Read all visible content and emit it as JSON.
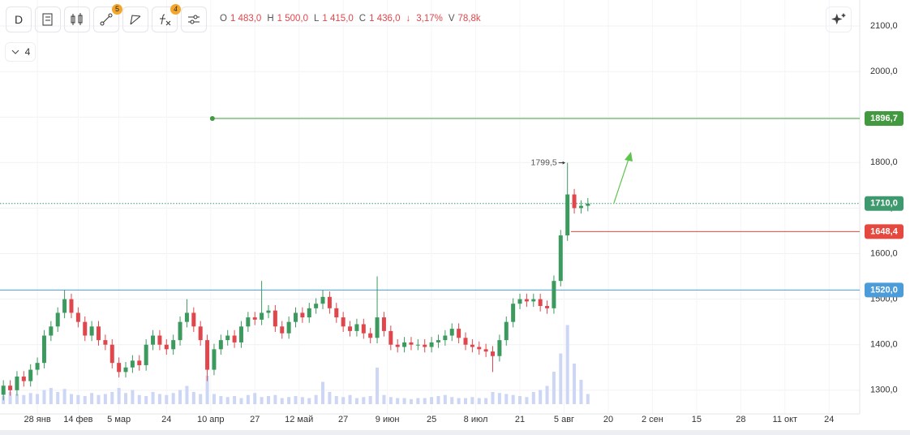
{
  "toolbar": {
    "interval": "D",
    "drawings_badge": "5",
    "indicators_badge": "4",
    "indicator_count": "4",
    "legend": [
      {
        "key": "O",
        "value": "1 483,0"
      },
      {
        "key": "H",
        "value": "1 500,0"
      },
      {
        "key": "L",
        "value": "1 415,0"
      },
      {
        "key": "C",
        "value": "1 436,0"
      }
    ],
    "change_arrow": "↓",
    "change": "3,17%",
    "volume_key": "V",
    "volume": "78,8k"
  },
  "chart_data": {
    "type": "candlestick",
    "up_color": "#3d9a5f",
    "down_color": "#e0474c",
    "xlim": [
      0,
      253
    ],
    "ylim": [
      1248,
      2157
    ],
    "xticks": [
      {
        "value": 11,
        "label": "28 янв"
      },
      {
        "value": 23,
        "label": "14 фев"
      },
      {
        "value": 35,
        "label": "5 мар"
      },
      {
        "value": 49,
        "label": "24"
      },
      {
        "value": 62,
        "label": "10 апр"
      },
      {
        "value": 75,
        "label": "27"
      },
      {
        "value": 88,
        "label": "12 май"
      },
      {
        "value": 101,
        "label": "27"
      },
      {
        "value": 114,
        "label": "9 июн"
      },
      {
        "value": 127,
        "label": "25"
      },
      {
        "value": 140,
        "label": "8 июл"
      },
      {
        "value": 153,
        "label": "21"
      },
      {
        "value": 166,
        "label": "5 авг"
      },
      {
        "value": 179,
        "label": "20"
      },
      {
        "value": 192,
        "label": "2 сен"
      },
      {
        "value": 205,
        "label": "15"
      },
      {
        "value": 218,
        "label": "28"
      },
      {
        "value": 231,
        "label": "11 окт"
      },
      {
        "value": 244,
        "label": "24"
      }
    ],
    "yticks": [
      {
        "value": 1300,
        "label": "1300,0"
      },
      {
        "value": 1400,
        "label": "1400,0"
      },
      {
        "value": 1500,
        "label": "1500,0"
      },
      {
        "value": 1600,
        "label": "1600,0"
      },
      {
        "value": 1700,
        "label": "1700,0"
      },
      {
        "value": 1800,
        "label": "1800,0"
      },
      {
        "value": 1900,
        "label": "1900,0"
      },
      {
        "value": 2000,
        "label": "2000,0"
      },
      {
        "value": 2100,
        "label": "2100,0"
      }
    ],
    "grid": true,
    "x": [
      1,
      3,
      5,
      7,
      9,
      11,
      13,
      15,
      17,
      19,
      21,
      23,
      25,
      27,
      29,
      31,
      33,
      35,
      37,
      39,
      41,
      43,
      45,
      47,
      49,
      51,
      53,
      55,
      57,
      59,
      61,
      63,
      65,
      67,
      69,
      71,
      73,
      75,
      77,
      79,
      81,
      83,
      85,
      87,
      89,
      91,
      93,
      95,
      97,
      99,
      101,
      103,
      105,
      107,
      109,
      111,
      113,
      115,
      117,
      119,
      121,
      123,
      125,
      127,
      129,
      131,
      133,
      135,
      137,
      139,
      141,
      143,
      145,
      147,
      149,
      151,
      153,
      155,
      157,
      159,
      161,
      163,
      165,
      167,
      169,
      171,
      173
    ],
    "open": [
      1290,
      1310,
      1300,
      1330,
      1320,
      1345,
      1360,
      1420,
      1440,
      1470,
      1500,
      1470,
      1450,
      1420,
      1440,
      1410,
      1400,
      1360,
      1340,
      1350,
      1365,
      1355,
      1400,
      1420,
      1400,
      1390,
      1410,
      1450,
      1470,
      1440,
      1410,
      1345,
      1390,
      1410,
      1420,
      1405,
      1440,
      1460,
      1455,
      1470,
      1475,
      1440,
      1425,
      1450,
      1470,
      1460,
      1480,
      1490,
      1505,
      1480,
      1460,
      1440,
      1430,
      1445,
      1425,
      1415,
      1460,
      1430,
      1400,
      1395,
      1405,
      1400,
      1400,
      1395,
      1405,
      1410,
      1420,
      1435,
      1415,
      1400,
      1395,
      1390,
      1385,
      1375,
      1410,
      1450,
      1490,
      1500,
      1495,
      1500,
      1485,
      1480,
      1540,
      1640,
      1730,
      1700,
      1705
    ],
    "high": [
      1322,
      1322,
      1342,
      1342,
      1357,
      1372,
      1432,
      1452,
      1482,
      1520,
      1512,
      1482,
      1462,
      1452,
      1452,
      1422,
      1412,
      1372,
      1362,
      1377,
      1377,
      1412,
      1432,
      1432,
      1412,
      1422,
      1462,
      1500,
      1482,
      1452,
      1422,
      1402,
      1422,
      1432,
      1432,
      1452,
      1472,
      1472,
      1540,
      1487,
      1487,
      1452,
      1462,
      1482,
      1482,
      1492,
      1502,
      1520,
      1517,
      1492,
      1472,
      1452,
      1457,
      1457,
      1437,
      1550,
      1472,
      1442,
      1412,
      1417,
      1417,
      1412,
      1412,
      1417,
      1422,
      1432,
      1447,
      1447,
      1427,
      1412,
      1407,
      1402,
      1397,
      1422,
      1462,
      1502,
      1512,
      1512,
      1512,
      1512,
      1497,
      1552,
      1652,
      1799.5,
      1742,
      1717,
      1722
    ],
    "low": [
      1278,
      1288,
      1288,
      1308,
      1308,
      1333,
      1348,
      1408,
      1428,
      1458,
      1458,
      1438,
      1408,
      1408,
      1398,
      1388,
      1348,
      1328,
      1328,
      1338,
      1343,
      1343,
      1388,
      1388,
      1378,
      1378,
      1398,
      1438,
      1428,
      1398,
      1320,
      1333,
      1378,
      1398,
      1393,
      1393,
      1428,
      1443,
      1443,
      1458,
      1428,
      1413,
      1413,
      1438,
      1448,
      1448,
      1468,
      1478,
      1468,
      1448,
      1428,
      1418,
      1418,
      1413,
      1403,
      1403,
      1418,
      1388,
      1383,
      1383,
      1388,
      1388,
      1383,
      1383,
      1393,
      1398,
      1408,
      1403,
      1388,
      1383,
      1378,
      1373,
      1340,
      1363,
      1398,
      1438,
      1478,
      1483,
      1483,
      1473,
      1468,
      1468,
      1528,
      1628,
      1688,
      1688,
      1693
    ],
    "close": [
      1310,
      1300,
      1330,
      1320,
      1345,
      1360,
      1420,
      1440,
      1470,
      1500,
      1470,
      1450,
      1420,
      1440,
      1410,
      1400,
      1360,
      1340,
      1350,
      1365,
      1355,
      1400,
      1420,
      1400,
      1390,
      1410,
      1450,
      1470,
      1440,
      1410,
      1345,
      1390,
      1410,
      1420,
      1405,
      1440,
      1460,
      1455,
      1470,
      1475,
      1440,
      1425,
      1450,
      1470,
      1460,
      1480,
      1490,
      1505,
      1480,
      1460,
      1440,
      1430,
      1445,
      1425,
      1415,
      1460,
      1430,
      1400,
      1395,
      1405,
      1400,
      1400,
      1395,
      1405,
      1410,
      1420,
      1435,
      1415,
      1400,
      1395,
      1390,
      1385,
      1375,
      1410,
      1450,
      1490,
      1500,
      1495,
      1500,
      1485,
      1480,
      1540,
      1640,
      1730,
      1700,
      1705,
      1710
    ],
    "volume": {
      "color": "#cdd6f4",
      "lim": [
        0,
        400
      ],
      "values": [
        40,
        60,
        50,
        45,
        55,
        50,
        70,
        80,
        60,
        75,
        50,
        45,
        40,
        55,
        45,
        50,
        60,
        80,
        55,
        70,
        45,
        40,
        60,
        50,
        45,
        55,
        70,
        90,
        60,
        50,
        140,
        50,
        40,
        35,
        40,
        30,
        45,
        55,
        35,
        40,
        45,
        30,
        35,
        40,
        35,
        30,
        45,
        110,
        60,
        40,
        35,
        45,
        30,
        35,
        40,
        180,
        45,
        35,
        30,
        30,
        25,
        30,
        30,
        35,
        40,
        45,
        35,
        30,
        30,
        35,
        30,
        30,
        60,
        55,
        50,
        45,
        40,
        35,
        60,
        70,
        90,
        160,
        250,
        390,
        200,
        120,
        50
      ]
    },
    "levels": [
      {
        "value": 1896.7,
        "label": "1896,7",
        "color": "#43993f",
        "from": 62.5,
        "style": "solid"
      },
      {
        "value": 1710,
        "label": "1710,0",
        "color": "#3e9a6e",
        "style": "dotted"
      },
      {
        "value": 1648.4,
        "label": "1648,4",
        "color": "#e5483f",
        "from": 168,
        "style": "solid"
      },
      {
        "value": 1520,
        "label": "1520,0",
        "color": "#4b9cd8",
        "style": "solid"
      }
    ],
    "peak": {
      "x": 167,
      "value": 1799.5,
      "label": "1799,5"
    }
  }
}
